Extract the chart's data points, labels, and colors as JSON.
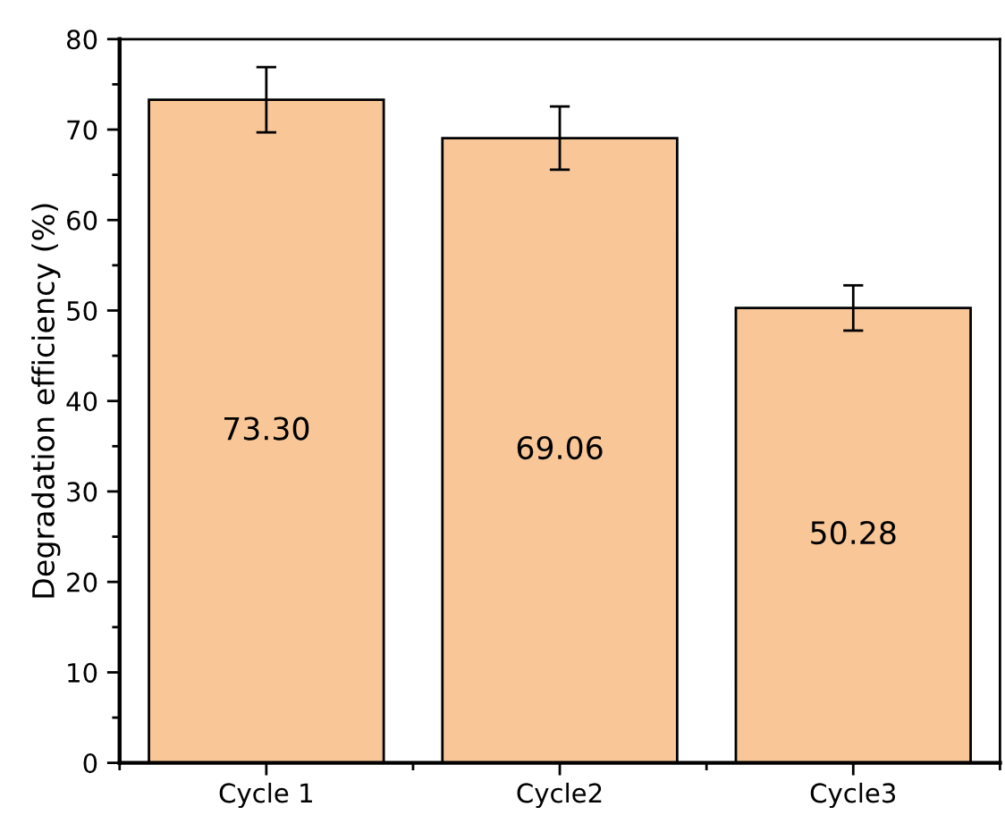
{
  "chart_data": {
    "type": "bar",
    "ylabel": "Degradation efficiency (%)",
    "categories": [
      "Cycle 1",
      "Cycle2",
      "Cycle3"
    ],
    "values": [
      73.3,
      69.06,
      50.28
    ],
    "errors": [
      3.6,
      3.5,
      2.5
    ],
    "color": "#f9c797",
    "value_labels": [
      "73.30",
      "69.06",
      "50.28"
    ],
    "ylim": [
      0,
      80
    ],
    "yticks": [
      0,
      10,
      20,
      30,
      40,
      50,
      60,
      70,
      80
    ],
    "grid": false,
    "legend": false
  }
}
